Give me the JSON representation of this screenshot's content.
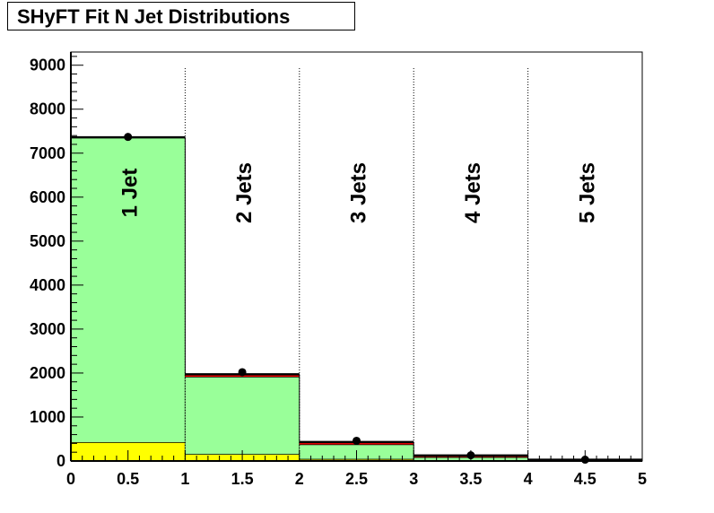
{
  "chart_data": {
    "type": "bar",
    "title": "SHyFT Fit N Jet Distributions",
    "xlim": [
      0,
      5
    ],
    "ylim": [
      0,
      9300
    ],
    "x_ticks": [
      "0",
      "0.5",
      "1",
      "1.5",
      "2",
      "2.5",
      "3",
      "3.5",
      "4",
      "4.5",
      "5"
    ],
    "y_ticks": [
      "0",
      "1000",
      "2000",
      "3000",
      "4000",
      "5000",
      "6000",
      "7000",
      "8000",
      "9000"
    ],
    "bins": [
      [
        0,
        1
      ],
      [
        1,
        2
      ],
      [
        2,
        3
      ],
      [
        3,
        4
      ],
      [
        4,
        5
      ]
    ],
    "bin_labels": [
      "1 Jet",
      "2 Jets",
      "3 Jets",
      "4 Jets",
      "5 Jets"
    ],
    "stack": [
      {
        "color": "#ffff00",
        "values": [
          420,
          150,
          40,
          10,
          2
        ]
      },
      {
        "color": "#99ff99",
        "values": [
          6930,
          1760,
          330,
          70,
          15
        ]
      },
      {
        "color": "#ff0000",
        "values": [
          10,
          60,
          60,
          45,
          10
        ]
      }
    ],
    "data_points": {
      "x": [
        0.5,
        1.5,
        2.5,
        3.5,
        4.5
      ],
      "y": [
        7370,
        2020,
        460,
        130,
        30
      ]
    },
    "grid": false,
    "bin_separators": "dotted vertical lines"
  }
}
